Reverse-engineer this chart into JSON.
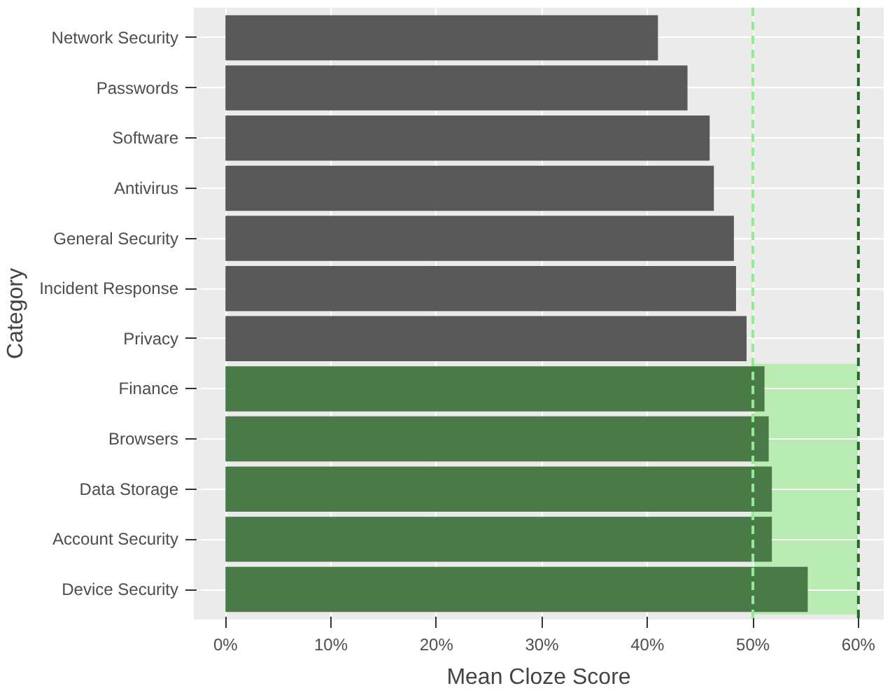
{
  "chart_data": {
    "type": "bar",
    "orientation": "horizontal",
    "xlabel": "Mean Cloze Score",
    "ylabel": "Category",
    "categories": [
      "Network Security",
      "Passwords",
      "Software",
      "Antivirus",
      "General Security",
      "Incident Response",
      "Privacy",
      "Finance",
      "Browsers",
      "Data Storage",
      "Account Security",
      "Device Security"
    ],
    "values": [
      41.0,
      43.8,
      45.9,
      46.3,
      48.2,
      48.4,
      49.4,
      51.1,
      51.5,
      51.8,
      51.8,
      55.2
    ],
    "colors": [
      "#595959",
      "#595959",
      "#595959",
      "#595959",
      "#595959",
      "#595959",
      "#595959",
      "#4a7a48",
      "#4a7a48",
      "#4a7a48",
      "#4a7a48",
      "#4a7a48"
    ],
    "xlim": [
      -3,
      62.4
    ],
    "xticks": [
      {
        "value": 0,
        "label": "0%"
      },
      {
        "value": 10,
        "label": "10%"
      },
      {
        "value": 20,
        "label": "20%"
      },
      {
        "value": 30,
        "label": "30%"
      },
      {
        "value": 40,
        "label": "40%"
      },
      {
        "value": 50,
        "label": "50%"
      },
      {
        "value": 60,
        "label": "60%"
      }
    ],
    "bands": [
      {
        "axis": "x",
        "from": 50,
        "to": 60,
        "color": "#b8ecb2"
      }
    ],
    "ref_lines": [
      {
        "axis": "x",
        "value": 50,
        "color": "#90ee90",
        "line_style": "dashed"
      },
      {
        "axis": "x",
        "value": 60,
        "color": "#1f6b1f",
        "line_style": "dashed"
      }
    ],
    "grid": true
  }
}
